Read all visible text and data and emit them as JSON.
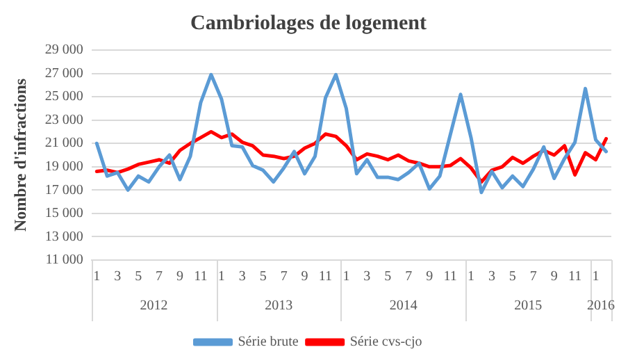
{
  "chart_data": {
    "type": "line",
    "title": "Cambriolages de logement",
    "ylabel": "Nombre d'infractions",
    "categories": [
      "1",
      null,
      "3",
      null,
      "5",
      null,
      "7",
      null,
      "9",
      null,
      "11",
      null,
      "1",
      null,
      "3",
      null,
      "5",
      null,
      "7",
      null,
      "9",
      null,
      "11",
      null,
      "1",
      null,
      "3",
      null,
      "5",
      null,
      "7",
      null,
      "9",
      null,
      "11",
      null,
      "1",
      null,
      "3",
      null,
      "5",
      null,
      "7",
      null,
      "9",
      null,
      "11",
      null,
      "1",
      null
    ],
    "annotations": [
      "2012",
      "2013",
      "2014",
      "2015",
      "2016"
    ],
    "series": [
      {
        "name": "Série brute",
        "color": "#5b9bd5",
        "values": [
          21000,
          18200,
          18500,
          17000,
          18200,
          17700,
          19000,
          20000,
          17900,
          19900,
          24500,
          26900,
          24800,
          20800,
          20700,
          19100,
          18700,
          17700,
          18900,
          20300,
          18400,
          19900,
          24900,
          26900,
          24000,
          18400,
          19600,
          18100,
          18100,
          17900,
          18500,
          19300,
          17100,
          18200,
          21700,
          25200,
          21500,
          16800,
          18600,
          17200,
          18200,
          17300,
          18800,
          20700,
          18000,
          19700,
          21100,
          25700,
          21300,
          20300
        ]
      },
      {
        "name": "Série cvs-cjo",
        "color": "#ff0000",
        "values": [
          18600,
          18700,
          18500,
          18800,
          19200,
          19400,
          19600,
          19300,
          20400,
          21000,
          21500,
          22000,
          21500,
          21800,
          21100,
          20800,
          20000,
          19900,
          19700,
          19900,
          20600,
          21000,
          21800,
          21600,
          20800,
          19600,
          20100,
          19900,
          19600,
          20000,
          19500,
          19300,
          19000,
          19000,
          19100,
          19700,
          18900,
          17700,
          18700,
          19000,
          19800,
          19300,
          19900,
          20400,
          20000,
          20800,
          18300,
          20200,
          19600,
          21400
        ]
      }
    ],
    "ylim": [
      11000,
      29000
    ],
    "yticks": [
      {
        "value": 11000,
        "label": "11 000"
      },
      {
        "value": 13000,
        "label": "13 000"
      },
      {
        "value": 15000,
        "label": "15 000"
      },
      {
        "value": 17000,
        "label": "17 000"
      },
      {
        "value": 19000,
        "label": "19 000"
      },
      {
        "value": 21000,
        "label": "21 000"
      },
      {
        "value": 23000,
        "label": "23 000"
      },
      {
        "value": 25000,
        "label": "25 000"
      },
      {
        "value": 27000,
        "label": "27 000"
      },
      {
        "value": 29000,
        "label": "29 000"
      }
    ],
    "grid": "y",
    "legend": "bottom",
    "marker": "none",
    "line_style": "solid"
  }
}
